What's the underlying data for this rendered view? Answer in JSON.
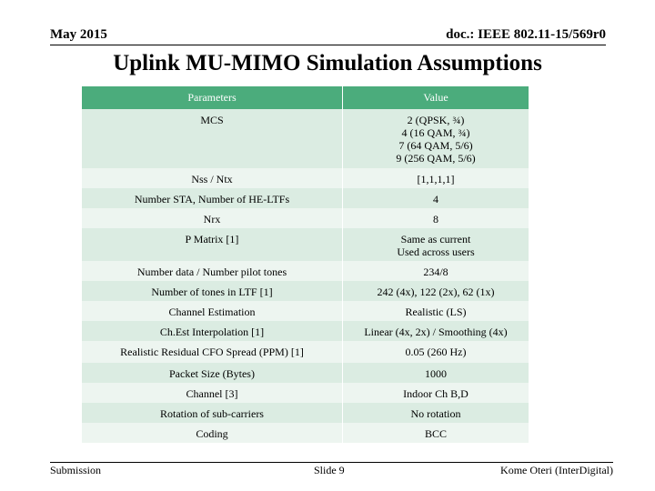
{
  "header": {
    "date": "May 2015",
    "doc": "doc.: IEEE 802.11-15/569r0"
  },
  "title": "Uplink MU-MIMO Simulation Assumptions",
  "table": {
    "col_headers": [
      "Parameters",
      "Value"
    ],
    "rows": [
      {
        "param": "MCS",
        "value": [
          "2 (QPSK, ¾)",
          "4 (16 QAM, ¾)",
          "7 (64 QAM, 5/6)",
          "9 (256 QAM, 5/6)"
        ]
      },
      {
        "param": "Nss / Ntx",
        "value": [
          "[1,1,1,1]"
        ]
      },
      {
        "param": "Number STA, Number of HE-LTFs",
        "value": [
          "4"
        ]
      },
      {
        "param": "Nrx",
        "value": [
          "8"
        ]
      },
      {
        "param": "P Matrix [1]",
        "value": [
          "Same as current",
          "Used across users"
        ]
      },
      {
        "param": "Number data / Number pilot tones",
        "value": [
          "234/8"
        ]
      },
      {
        "param": "Number of tones in LTF [1]",
        "value": [
          "242 (4x), 122 (2x), 62 (1x)"
        ]
      },
      {
        "param": "Channel Estimation",
        "value": [
          "Realistic (LS)"
        ]
      },
      {
        "param": "Ch.Est Interpolation [1]",
        "value": [
          "Linear (4x, 2x) / Smoothing (4x)"
        ]
      },
      {
        "param": "Realistic Residual CFO Spread (PPM) [1]",
        "value": [
          "0.05 (260 Hz)"
        ]
      },
      {
        "param": "Packet Size (Bytes)",
        "value": [
          "1000"
        ]
      },
      {
        "param": "Channel [3]",
        "value": [
          "Indoor Ch B,D"
        ]
      },
      {
        "param": "Rotation of sub-carriers",
        "value": [
          "No rotation"
        ]
      },
      {
        "param": "Coding",
        "value": [
          "BCC"
        ]
      }
    ]
  },
  "footer": {
    "left": "Submission",
    "middle": "Slide 9",
    "right": "Kome Oteri (InterDigital)"
  },
  "colors": {
    "header_bg": "#4bac7c",
    "row_even": "#dbece2",
    "row_odd": "#edf5f0"
  }
}
